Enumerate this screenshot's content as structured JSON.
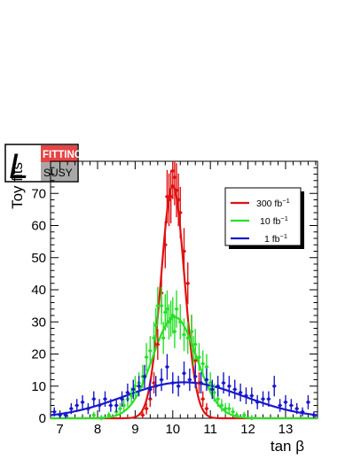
{
  "logo": {
    "top_text": "FITTINO",
    "bottom_text": "SUSY",
    "script_letter": "L",
    "colors": {
      "top_band": "#e64545",
      "bottom_band": "#a8a8a8"
    }
  },
  "chart_data": {
    "type": "scatter",
    "title": "",
    "xlabel": "tan β",
    "ylabel": "Toy fits",
    "xlim": [
      6.75,
      13.85
    ],
    "ylim": [
      0,
      80
    ],
    "x_ticks": [
      7,
      8,
      9,
      10,
      11,
      12,
      13
    ],
    "y_ticks": [
      0,
      10,
      20,
      30,
      40,
      50,
      60,
      70
    ],
    "grid": false,
    "legend_position": "top-right",
    "series": [
      {
        "name": "300 fb",
        "name_sup": "−1",
        "color": "#e01010",
        "fit": {
          "shape": "gaussian",
          "amplitude": 72.5,
          "mean": 10.0,
          "sigma": 0.31
        },
        "points": [
          [
            9.2,
            1,
            1
          ],
          [
            9.3,
            3,
            1.8
          ],
          [
            9.4,
            6,
            2.5
          ],
          [
            9.5,
            11,
            3.3
          ],
          [
            9.6,
            23,
            4.8
          ],
          [
            9.7,
            39,
            6.2
          ],
          [
            9.8,
            54,
            7.3
          ],
          [
            9.85,
            69,
            8.3
          ],
          [
            9.9,
            68,
            8.2
          ],
          [
            9.95,
            69,
            8.3
          ],
          [
            10.0,
            77,
            8.8
          ],
          [
            10.05,
            75,
            8.7
          ],
          [
            10.1,
            71,
            8.4
          ],
          [
            10.15,
            68,
            8.2
          ],
          [
            10.2,
            64,
            8.0
          ],
          [
            10.3,
            52,
            7.2
          ],
          [
            10.4,
            42,
            6.5
          ],
          [
            10.5,
            27,
            5.2
          ],
          [
            10.6,
            18,
            4.2
          ],
          [
            10.7,
            11,
            3.3
          ],
          [
            10.8,
            6,
            2.4
          ],
          [
            10.9,
            3,
            1.7
          ]
        ]
      },
      {
        "name": "10 fb",
        "name_sup": "−1",
        "color": "#28e028",
        "fit": {
          "shape": "gaussian",
          "amplitude": 31.5,
          "mean": 10.05,
          "sigma": 0.58
        },
        "points": [
          [
            7.9,
            1,
            1
          ],
          [
            8.1,
            0,
            1
          ],
          [
            8.3,
            1,
            1
          ],
          [
            8.5,
            2,
            1.4
          ],
          [
            8.6,
            3,
            1.7
          ],
          [
            8.7,
            4,
            2
          ],
          [
            8.8,
            6,
            2.4
          ],
          [
            8.9,
            7,
            2.6
          ],
          [
            9.0,
            10,
            3.2
          ],
          [
            9.1,
            11,
            3.3
          ],
          [
            9.2,
            13,
            3.6
          ],
          [
            9.3,
            19,
            4.4
          ],
          [
            9.4,
            21,
            4.6
          ],
          [
            9.5,
            25,
            5
          ],
          [
            9.55,
            29,
            5.4
          ],
          [
            9.6,
            35,
            5.9
          ],
          [
            9.7,
            35,
            5.9
          ],
          [
            9.75,
            25,
            5
          ],
          [
            9.8,
            33,
            5.7
          ],
          [
            9.85,
            34,
            5.8
          ],
          [
            9.9,
            30,
            5.5
          ],
          [
            9.95,
            31,
            5.6
          ],
          [
            10.0,
            32,
            5.7
          ],
          [
            10.05,
            27,
            5.2
          ],
          [
            10.1,
            34,
            5.8
          ],
          [
            10.2,
            30,
            5.5
          ],
          [
            10.3,
            26,
            5.1
          ],
          [
            10.4,
            25,
            5
          ],
          [
            10.5,
            27,
            5.2
          ],
          [
            10.55,
            21,
            4.6
          ],
          [
            10.6,
            23,
            4.8
          ],
          [
            10.7,
            19,
            4.4
          ],
          [
            10.8,
            17,
            4.1
          ],
          [
            10.9,
            16,
            4
          ],
          [
            11.0,
            11,
            3.3
          ],
          [
            11.1,
            8,
            2.8
          ],
          [
            11.2,
            6,
            2.4
          ],
          [
            11.3,
            4,
            2
          ],
          [
            11.4,
            3,
            1.7
          ],
          [
            11.5,
            3,
            1.7
          ],
          [
            11.6,
            2,
            1.4
          ],
          [
            11.7,
            1,
            1
          ],
          [
            11.9,
            1,
            1
          ],
          [
            12.1,
            0,
            1
          ]
        ]
      },
      {
        "name": "1 fb",
        "name_sup": "−1",
        "color": "#1818cc",
        "fit": {
          "shape": "gaussian",
          "amplitude": 11.2,
          "mean": 10.3,
          "sigma": 1.6
        },
        "points": [
          [
            6.85,
            2,
            1.4
          ],
          [
            7.0,
            1,
            1
          ],
          [
            7.15,
            1,
            1
          ],
          [
            7.3,
            3,
            1.7
          ],
          [
            7.45,
            4,
            2
          ],
          [
            7.6,
            5,
            2.2
          ],
          [
            7.75,
            3,
            1.7
          ],
          [
            7.9,
            6,
            2.4
          ],
          [
            8.05,
            4,
            2
          ],
          [
            8.2,
            6,
            2.4
          ],
          [
            8.35,
            4,
            2
          ],
          [
            8.5,
            4,
            2
          ],
          [
            8.65,
            6,
            2.4
          ],
          [
            8.8,
            8,
            2.8
          ],
          [
            8.95,
            9,
            3
          ],
          [
            9.1,
            10,
            3.2
          ],
          [
            9.25,
            13,
            3.6
          ],
          [
            9.4,
            9,
            3
          ],
          [
            9.55,
            10,
            3.2
          ],
          [
            9.7,
            12,
            3.5
          ],
          [
            9.85,
            16,
            4
          ],
          [
            10.0,
            11,
            3.3
          ],
          [
            10.15,
            10,
            3.2
          ],
          [
            10.3,
            14,
            3.7
          ],
          [
            10.45,
            12,
            3.5
          ],
          [
            10.6,
            13,
            3.6
          ],
          [
            10.75,
            11,
            3.3
          ],
          [
            10.9,
            12,
            3.5
          ],
          [
            11.05,
            9,
            3
          ],
          [
            11.2,
            10,
            3.2
          ],
          [
            11.35,
            11,
            3.3
          ],
          [
            11.5,
            10,
            3.2
          ],
          [
            11.65,
            9,
            3
          ],
          [
            11.8,
            8,
            2.8
          ],
          [
            11.95,
            7,
            2.6
          ],
          [
            12.1,
            7,
            2.6
          ],
          [
            12.25,
            5,
            2.2
          ],
          [
            12.4,
            6,
            2.4
          ],
          [
            12.55,
            6,
            2.4
          ],
          [
            12.7,
            10,
            3.2
          ],
          [
            12.85,
            4,
            2
          ],
          [
            13.0,
            5,
            2.2
          ],
          [
            13.15,
            4,
            2
          ],
          [
            13.3,
            3,
            1.7
          ],
          [
            13.45,
            2,
            1.4
          ],
          [
            13.6,
            5,
            2.2
          ],
          [
            13.75,
            1,
            1
          ]
        ]
      }
    ]
  }
}
